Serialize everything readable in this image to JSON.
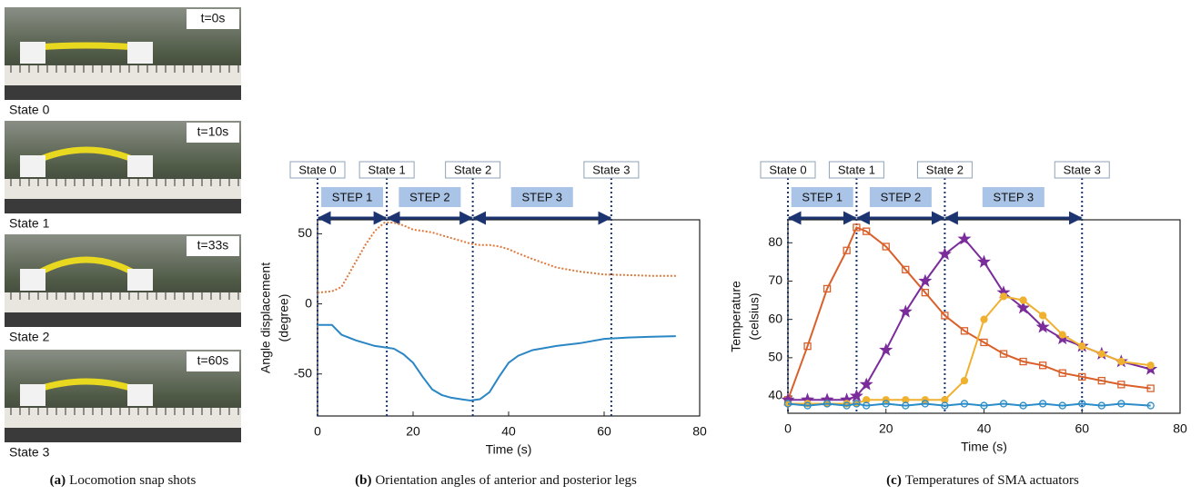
{
  "photos": {
    "frames": [
      {
        "time": "t=0s",
        "state": "State 0"
      },
      {
        "time": "t=10s",
        "state": "State 1"
      },
      {
        "time": "t=33s",
        "state": "State 2"
      },
      {
        "time": "t=60s",
        "state": "State 3"
      }
    ],
    "caption": {
      "tag": "(a)",
      "text": "Locomotion snap shots"
    }
  },
  "chart_data": [
    {
      "type": "line",
      "caption": {
        "tag": "(b)",
        "text": "Orientation angles of anterior and posterior legs"
      },
      "xlabel": "Time (s)",
      "ylabel": [
        "Angle displacement",
        "(degree)"
      ],
      "xlim": [
        0,
        80
      ],
      "xticks": [
        0,
        20,
        40,
        60,
        80
      ],
      "ylim": [
        -80,
        60
      ],
      "yticks": [
        -50,
        0,
        50
      ],
      "states": [
        {
          "label": "State 0",
          "x": 0
        },
        {
          "label": "State 1",
          "x": 14.5
        },
        {
          "label": "State 2",
          "x": 32.5
        },
        {
          "label": "State 3",
          "x": 61.5
        }
      ],
      "steps": [
        {
          "label": "STEP 1",
          "from": 0,
          "to": 14.5
        },
        {
          "label": "STEP 2",
          "from": 14.5,
          "to": 32.5
        },
        {
          "label": "STEP 3",
          "from": 32.5,
          "to": 61.5
        }
      ],
      "x": [
        0,
        3,
        5,
        8,
        10,
        12,
        14,
        16,
        18,
        20,
        22,
        24,
        26,
        28,
        30,
        32,
        34,
        36,
        38,
        40,
        42,
        45,
        50,
        55,
        60,
        65,
        70,
        75
      ],
      "series": [
        {
          "color": "#e0783c",
          "dashed": true,
          "values": [
            8,
            9,
            12,
            30,
            42,
            52,
            58,
            58,
            56,
            53,
            52,
            51,
            49,
            47,
            45,
            43,
            42,
            42,
            41,
            39,
            36,
            32,
            26,
            23,
            21,
            20.5,
            20,
            20
          ]
        },
        {
          "color": "#2a86c4",
          "dashed": false,
          "values": [
            -15,
            -15,
            -22,
            -26,
            -28,
            -30,
            -31,
            -32,
            -36,
            -42,
            -52,
            -61,
            -65,
            -67,
            -68,
            -69,
            -68,
            -63,
            -52,
            -42,
            -37,
            -33,
            -30,
            -28,
            -25,
            -24,
            -23.5,
            -23
          ]
        }
      ]
    },
    {
      "type": "line",
      "caption": {
        "tag": "(c)",
        "text": "Temperatures of SMA actuators"
      },
      "xlabel": "Time (s)",
      "ylabel": [
        "Temperature",
        "(celsius)"
      ],
      "xlim": [
        0,
        80
      ],
      "xticks": [
        0,
        20,
        40,
        60,
        80
      ],
      "ylim": [
        35.5,
        86
      ],
      "yticks": [
        40,
        50,
        60,
        70,
        80
      ],
      "states": [
        {
          "label": "State 0",
          "x": 0
        },
        {
          "label": "State 1",
          "x": 14
        },
        {
          "label": "State 2",
          "x": 32
        },
        {
          "label": "State 3",
          "x": 60
        }
      ],
      "steps": [
        {
          "label": "STEP 1",
          "from": 0,
          "to": 14
        },
        {
          "label": "STEP 2",
          "from": 14,
          "to": 32
        },
        {
          "label": "STEP 3",
          "from": 32,
          "to": 60
        }
      ],
      "x": [
        0,
        4,
        8,
        12,
        14,
        16,
        20,
        24,
        28,
        32,
        36,
        40,
        44,
        48,
        52,
        56,
        60,
        64,
        68,
        74
      ],
      "series": [
        {
          "color": "#d9602a",
          "marker": "square",
          "values": [
            39,
            53,
            68,
            78,
            84,
            83,
            79,
            73,
            67,
            61,
            57,
            54,
            51,
            49,
            48,
            46,
            45,
            44,
            43,
            42
          ]
        },
        {
          "color": "#7a2d9a",
          "marker": "star",
          "values": [
            39,
            39,
            39,
            39,
            40,
            43,
            52,
            62,
            70,
            77,
            81,
            75,
            67,
            63,
            58,
            55,
            53,
            51,
            49,
            47
          ]
        },
        {
          "color": "#f0b030",
          "marker": "circle",
          "values": [
            38,
            38,
            38,
            38,
            38,
            39,
            39,
            39,
            39,
            39,
            44,
            60,
            66,
            65,
            61,
            56,
            53,
            51,
            49,
            48
          ]
        },
        {
          "color": "#2a8cc8",
          "marker": "circle",
          "values": [
            38,
            37.5,
            38,
            37.5,
            38,
            37.5,
            38,
            37.5,
            38,
            37.5,
            38,
            37.5,
            38,
            37.5,
            38,
            37.5,
            38,
            37.5,
            38,
            37.5
          ]
        }
      ]
    }
  ]
}
